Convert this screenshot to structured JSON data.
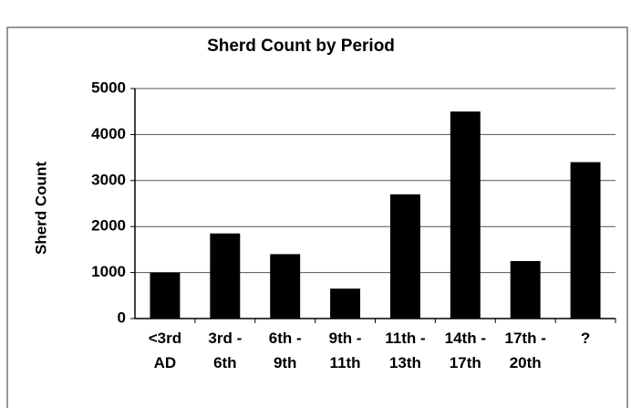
{
  "chart_data": {
    "type": "bar",
    "title": "Sherd Count by Period",
    "y_label": "Sherd Count",
    "categories": [
      "<3rd AD",
      "3rd - 6th",
      "6th - 9th",
      "9th - 11th",
      "11th - 13th",
      "14th - 17th",
      "17th - 20th",
      "?"
    ],
    "values": [
      1000,
      1850,
      1400,
      650,
      2700,
      4500,
      1250,
      3400
    ],
    "color": "#000000",
    "ylim": [
      0,
      5000
    ],
    "yticks": [
      0,
      1000,
      2000,
      3000,
      4000,
      5000
    ],
    "grid": true
  }
}
